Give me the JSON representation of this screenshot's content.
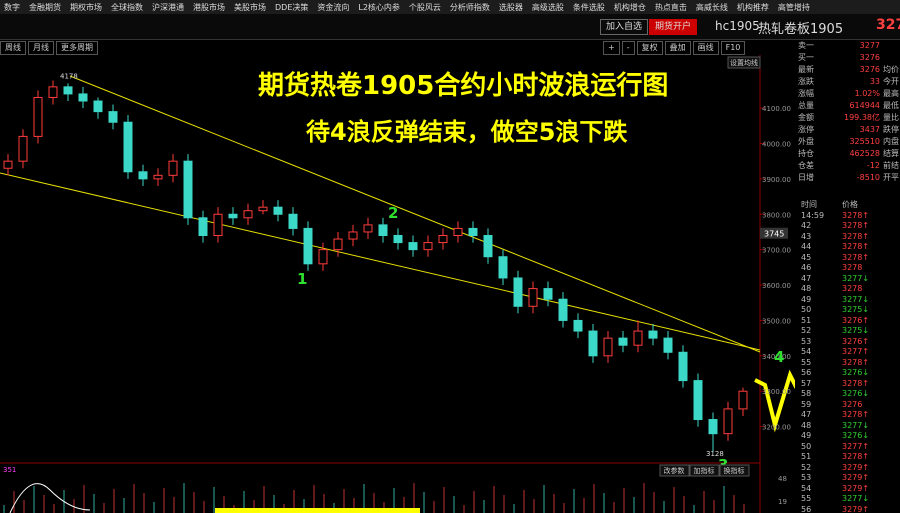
{
  "menu": [
    "数字",
    "金融期货",
    "期权市场",
    "全球指数",
    "沪深港通",
    "港股市场",
    "美股市场",
    "DDE决策",
    "资金流向",
    "L2核心内参",
    "个股风云",
    "分析师指数",
    "选股器",
    "高级选股",
    "条件选股",
    "机构增仓",
    "热点直击",
    "高威长线",
    "机构推荐",
    "高管增持"
  ],
  "header": {
    "buttons": [
      "加入自选",
      "期货开户"
    ],
    "code": "hc1905",
    "name": "热轧卷板1905",
    "price": "327"
  },
  "periods": [
    "周线",
    "月线",
    "更多周期"
  ],
  "tools": [
    "+",
    "-",
    "复权",
    "叠加",
    "画线",
    "F10"
  ],
  "ma_button": "设置均线",
  "chart": {
    "type": "candlestick",
    "title": "期货热卷1905合约小时波浪运行图",
    "subtitle": "待4浪反弹结束，做空5浪下跌",
    "waves": [
      "1",
      "2",
      "3",
      "4"
    ],
    "high_label": "4178",
    "low_label": "3128",
    "current_label": "3745",
    "up_color": "#ff3c3c",
    "down_color": "#3cd8c8",
    "ylim": [
      3100,
      4250
    ],
    "yticks": [
      {
        "value": 4100,
        "label": "4100.00"
      },
      {
        "value": 4000,
        "label": "4000.00"
      },
      {
        "value": 3900,
        "label": "3900.00"
      },
      {
        "value": 3800,
        "label": "3800.00"
      },
      {
        "value": 3700,
        "label": "3700.00"
      },
      {
        "value": 3600,
        "label": "3600.00"
      },
      {
        "value": 3500,
        "label": "3500.00"
      },
      {
        "value": 3400,
        "label": "3400.00"
      },
      {
        "value": 3300,
        "label": "3300.00"
      },
      {
        "value": 3200,
        "label": "3200.00"
      }
    ],
    "bars": [
      [
        3930,
        3970,
        3910,
        3950
      ],
      [
        3950,
        4040,
        3930,
        4020
      ],
      [
        4020,
        4150,
        4000,
        4130
      ],
      [
        4130,
        4178,
        4110,
        4160
      ],
      [
        4160,
        4170,
        4120,
        4140
      ],
      [
        4140,
        4160,
        4100,
        4120
      ],
      [
        4120,
        4130,
        4070,
        4090
      ],
      [
        4090,
        4110,
        4040,
        4060
      ],
      [
        4060,
        4080,
        3900,
        3920
      ],
      [
        3920,
        3940,
        3880,
        3900
      ],
      [
        3900,
        3930,
        3880,
        3910
      ],
      [
        3910,
        3970,
        3890,
        3950
      ],
      [
        3950,
        3970,
        3770,
        3790
      ],
      [
        3790,
        3810,
        3720,
        3740
      ],
      [
        3740,
        3820,
        3720,
        3800
      ],
      [
        3800,
        3820,
        3770,
        3790
      ],
      [
        3790,
        3830,
        3770,
        3810
      ],
      [
        3810,
        3840,
        3800,
        3820
      ],
      [
        3820,
        3840,
        3780,
        3800
      ],
      [
        3800,
        3820,
        3740,
        3760
      ],
      [
        3760,
        3780,
        3640,
        3660
      ],
      [
        3660,
        3720,
        3640,
        3700
      ],
      [
        3700,
        3750,
        3680,
        3730
      ],
      [
        3730,
        3770,
        3710,
        3750
      ],
      [
        3750,
        3790,
        3730,
        3770
      ],
      [
        3770,
        3790,
        3720,
        3740
      ],
      [
        3740,
        3760,
        3700,
        3720
      ],
      [
        3720,
        3740,
        3680,
        3700
      ],
      [
        3700,
        3740,
        3680,
        3720
      ],
      [
        3720,
        3760,
        3700,
        3740
      ],
      [
        3740,
        3780,
        3720,
        3760
      ],
      [
        3760,
        3780,
        3720,
        3740
      ],
      [
        3740,
        3760,
        3660,
        3680
      ],
      [
        3680,
        3700,
        3600,
        3620
      ],
      [
        3620,
        3640,
        3520,
        3540
      ],
      [
        3540,
        3610,
        3520,
        3590
      ],
      [
        3590,
        3610,
        3540,
        3560
      ],
      [
        3560,
        3580,
        3480,
        3500
      ],
      [
        3500,
        3520,
        3450,
        3470
      ],
      [
        3470,
        3490,
        3380,
        3400
      ],
      [
        3400,
        3470,
        3380,
        3450
      ],
      [
        3450,
        3470,
        3410,
        3430
      ],
      [
        3430,
        3500,
        3410,
        3470
      ],
      [
        3470,
        3490,
        3430,
        3450
      ],
      [
        3450,
        3470,
        3390,
        3410
      ],
      [
        3410,
        3430,
        3310,
        3330
      ],
      [
        3330,
        3350,
        3200,
        3220
      ],
      [
        3220,
        3240,
        3128,
        3180
      ],
      [
        3180,
        3270,
        3160,
        3250
      ],
      [
        3250,
        3310,
        3230,
        3300
      ]
    ]
  },
  "indicator": {
    "label": "351",
    "axis": [
      "48",
      "19"
    ],
    "tabs": [
      "改参数",
      "加指标",
      "换指标"
    ]
  },
  "quote": [
    {
      "label": "卖一",
      "value": "3277"
    },
    {
      "label": "买一",
      "value": "3276"
    },
    {
      "label": "最新",
      "value": "3276",
      "label2": "均价"
    },
    {
      "label": "涨跌",
      "value": "33",
      "label2": "今开"
    },
    {
      "label": "涨幅",
      "value": "1.02%",
      "label2": "最高"
    },
    {
      "label": "总量",
      "value": "614944",
      "label2": "最低"
    },
    {
      "label": "金额",
      "value": "199.38亿",
      "label2": "量比"
    },
    {
      "label": "涨停",
      "value": "3437",
      "label2": "跌停"
    },
    {
      "label": "外盘",
      "value": "325510",
      "label2": "内盘"
    },
    {
      "label": "持仓",
      "value": "462528",
      "label2": "结算"
    },
    {
      "label": "仓差",
      "value": "-12",
      "label2": "前结"
    },
    {
      "label": "日增",
      "value": "-8510",
      "label2": "开平"
    }
  ],
  "ticks": {
    "header": [
      "时间",
      "价格"
    ],
    "rows": [
      [
        "14:59",
        "3278↑"
      ],
      [
        "42",
        "3278↑"
      ],
      [
        "43",
        "3278↑"
      ],
      [
        "44",
        "3278↑"
      ],
      [
        "45",
        "3278↑"
      ],
      [
        "46",
        "3278"
      ],
      [
        "47",
        "3277↓"
      ],
      [
        "48",
        "3278"
      ],
      [
        "49",
        "3277↓"
      ],
      [
        "50",
        "3275↓"
      ],
      [
        "51",
        "3276↑"
      ],
      [
        "52",
        "3275↓"
      ],
      [
        "53",
        "3276↑"
      ],
      [
        "54",
        "3277↑"
      ],
      [
        "55",
        "3278↑"
      ],
      [
        "56",
        "3276↓"
      ],
      [
        "57",
        "3278↑"
      ],
      [
        "58",
        "3276↓"
      ],
      [
        "59",
        "3276"
      ],
      [
        "47",
        "3278↑"
      ],
      [
        "48",
        "3277↓"
      ],
      [
        "49",
        "3276↓"
      ],
      [
        "50",
        "3277↑"
      ],
      [
        "51",
        "3278↑"
      ],
      [
        "52",
        "3279↑"
      ],
      [
        "53",
        "3279↑"
      ],
      [
        "54",
        "3279↑"
      ],
      [
        "55",
        "3277↓"
      ],
      [
        "56",
        "3279↑"
      ]
    ]
  }
}
